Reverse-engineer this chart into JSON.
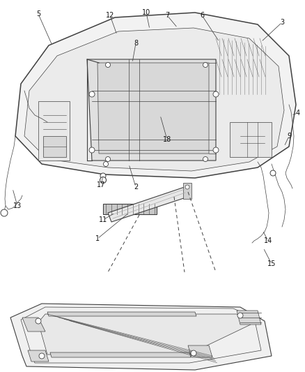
{
  "background_color": "#ffffff",
  "line_color": "#404040",
  "label_color": "#111111",
  "fig_width": 4.39,
  "fig_height": 5.33,
  "dpi": 100
}
